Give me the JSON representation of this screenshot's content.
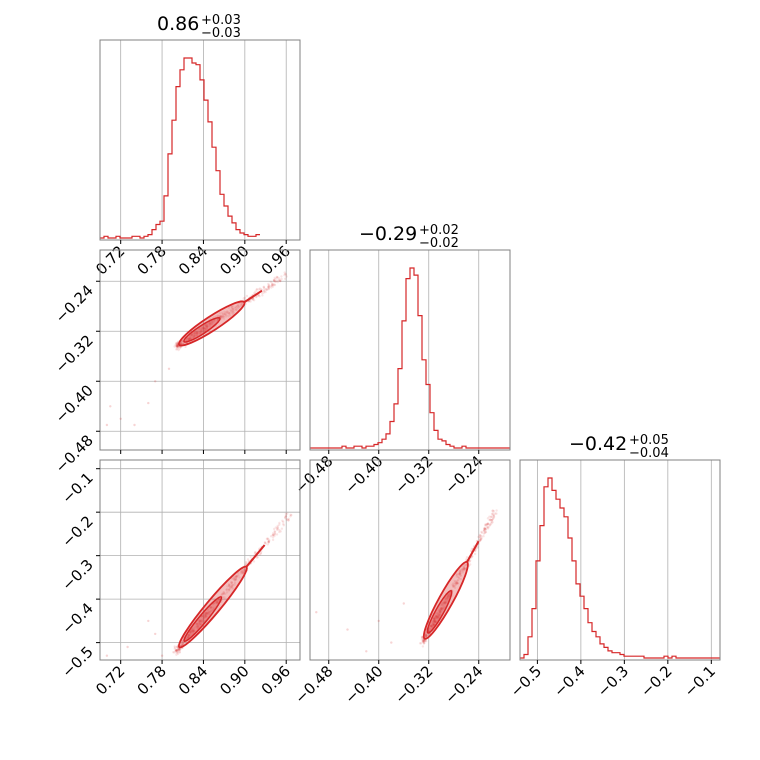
{
  "figure": {
    "accent_color": "#d62728",
    "grid_color": "#b0b0b0",
    "frame_color": "#808080"
  },
  "chart_data": [
    {
      "panel": "p1-marginal",
      "type": "histogram",
      "title": {
        "value": "0.86",
        "plus": "+0.03",
        "minus": "−0.03"
      },
      "xlim": [
        0.69,
        0.98
      ],
      "x_ticks": [
        0.72,
        0.78,
        0.84,
        0.9,
        0.96
      ],
      "x_tick_labels": [
        "0.72",
        "0.78",
        "0.84",
        "0.90",
        "0.96"
      ],
      "grid": true,
      "bins": {
        "start": 0.69,
        "width": 0.0058,
        "counts": [
          0,
          1,
          0,
          0,
          1,
          0,
          0,
          0,
          1,
          1,
          0,
          1,
          2,
          5,
          8,
          10,
          25,
          50,
          70,
          90,
          100,
          107,
          107,
          104,
          103,
          94,
          82,
          69,
          54,
          40,
          26,
          19,
          13,
          9,
          5,
          3,
          2,
          1,
          1,
          2
        ]
      }
    },
    {
      "panel": "p1-vs-p2",
      "type": "scatter",
      "xlim": [
        0.69,
        0.98
      ],
      "ylim": [
        -0.51,
        -0.19
      ],
      "x_ticks": [
        0.72,
        0.78,
        0.84,
        0.9,
        0.96
      ],
      "y_ticks": [
        -0.24,
        -0.32,
        -0.4,
        -0.48
      ],
      "y_tick_labels": [
        "−0.24",
        "−0.32",
        "−0.40",
        "−0.48"
      ],
      "grid": true,
      "trend": {
        "x0": 0.8,
        "y0": -0.345,
        "slope": 0.72,
        "x_range": [
          0.8,
          0.96
        ]
      },
      "points": [
        [
          0.7,
          -0.47
        ],
        [
          0.72,
          -0.46
        ],
        [
          0.705,
          -0.44
        ],
        [
          0.79,
          -0.38
        ],
        [
          0.77,
          -0.4
        ],
        [
          0.76,
          -0.435
        ],
        [
          0.74,
          -0.47
        ]
      ]
    },
    {
      "panel": "p2-marginal",
      "type": "histogram",
      "title": {
        "value": "−0.29",
        "plus": "+0.02",
        "minus": "−0.02"
      },
      "xlim": [
        -0.51,
        -0.19
      ],
      "x_ticks": [
        -0.48,
        -0.4,
        -0.32,
        -0.24
      ],
      "x_tick_labels": [
        "−0.48",
        "−0.40",
        "−0.32",
        "−0.24"
      ],
      "grid": true,
      "bins": {
        "start": -0.51,
        "width": 0.0064,
        "counts": [
          0,
          0,
          0,
          0,
          0,
          0,
          0,
          0,
          1,
          0,
          0,
          1,
          1,
          0,
          1,
          1,
          2,
          3,
          5,
          8,
          15,
          25,
          45,
          72,
          96,
          102,
          98,
          75,
          50,
          36,
          20,
          10,
          5,
          4,
          2,
          1,
          0,
          0,
          1,
          0,
          0,
          0,
          0,
          0,
          0,
          0,
          0,
          0,
          0,
          0
        ]
      }
    },
    {
      "panel": "p1-vs-p3",
      "type": "scatter",
      "xlim": [
        0.69,
        0.98
      ],
      "ylim": [
        -0.54,
        -0.08
      ],
      "x_ticks": [
        0.72,
        0.78,
        0.84,
        0.9,
        0.96
      ],
      "x_tick_labels": [
        "0.72",
        "0.78",
        "0.84",
        "0.90",
        "0.96"
      ],
      "y_ticks": [
        -0.1,
        -0.2,
        -0.3,
        -0.4,
        -0.5
      ],
      "y_tick_labels": [
        "−0.1",
        "−0.2",
        "−0.3",
        "−0.4",
        "−0.5"
      ],
      "grid": true,
      "trend": {
        "x0": 0.8,
        "y0": -0.52,
        "slope": 1.9,
        "x_range": [
          0.8,
          0.965
        ]
      },
      "points": [
        [
          0.7,
          -0.53
        ],
        [
          0.73,
          -0.51
        ],
        [
          0.77,
          -0.48
        ],
        [
          0.76,
          -0.45
        ],
        [
          0.78,
          -0.53
        ]
      ]
    },
    {
      "panel": "p2-vs-p3",
      "type": "scatter",
      "xlim": [
        -0.51,
        -0.19
      ],
      "ylim": [
        -0.54,
        -0.08
      ],
      "x_ticks": [
        -0.48,
        -0.4,
        -0.32,
        -0.24
      ],
      "x_tick_labels": [
        "−0.48",
        "−0.40",
        "−0.32",
        "−0.24"
      ],
      "grid": true,
      "trend": {
        "x0": -0.33,
        "y0": -0.5,
        "slope": 2.6,
        "x_range": [
          -0.33,
          -0.215
        ]
      },
      "points": [
        [
          -0.5,
          -0.43
        ],
        [
          -0.45,
          -0.47
        ],
        [
          -0.38,
          -0.5
        ],
        [
          -0.4,
          -0.45
        ],
        [
          -0.36,
          -0.41
        ],
        [
          -0.42,
          -0.52
        ]
      ]
    },
    {
      "panel": "p3-marginal",
      "type": "histogram",
      "title": {
        "value": "−0.42",
        "plus": "+0.05",
        "minus": "−0.04"
      },
      "xlim": [
        -0.54,
        -0.08
      ],
      "x_ticks": [
        -0.5,
        -0.4,
        -0.3,
        -0.2,
        -0.1
      ],
      "x_tick_labels": [
        "−0.5",
        "−0.4",
        "−0.3",
        "−0.2",
        "−0.1"
      ],
      "grid": true,
      "bins": {
        "start": -0.54,
        "width": 0.0092,
        "counts": [
          0,
          2,
          12,
          28,
          55,
          75,
          97,
          102,
          95,
          90,
          85,
          80,
          68,
          55,
          42,
          35,
          28,
          20,
          15,
          12,
          8,
          6,
          4,
          3,
          3,
          2,
          1,
          1,
          1,
          1,
          1,
          0,
          0,
          0,
          0,
          0,
          1,
          0,
          1,
          0,
          0,
          0,
          0,
          0,
          0,
          0,
          0,
          0,
          0,
          0
        ]
      }
    }
  ]
}
